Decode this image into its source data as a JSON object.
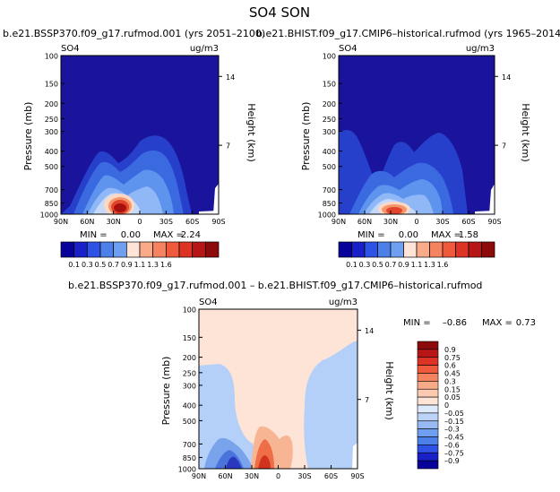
{
  "figure": {
    "title": "SO4 SON"
  },
  "colors": {
    "neg_bar": [
      "#08029a",
      "#1a20c8",
      "#2e52e6",
      "#4c7fe8",
      "#6f9ff0",
      "#97baf4",
      "#bcd3f8",
      "#ddeafc"
    ],
    "pos_bar": [
      "#fde4d6",
      "#fbcab0",
      "#f9aa88",
      "#f6835f",
      "#f05a3c",
      "#dd3324",
      "#b81616",
      "#8c0a0a"
    ],
    "panel_colors": [
      "#1a149c",
      "#2740cc",
      "#3b6ae0",
      "#5f94ee",
      "#90b8f6",
      "#c5dafa",
      "#fdd8c4",
      "#f5966a",
      "#e0442a",
      "#a80f0f"
    ],
    "diff_colors": [
      "#2a37bf",
      "#4a74dc",
      "#79a4ec",
      "#b4cff8",
      "#fde4d6",
      "#f8b594",
      "#ee6e48",
      "#d2331f"
    ]
  },
  "chart_data": [
    {
      "type": "contour",
      "panel": "top-left",
      "title": "b.e21.BSSP370.f09_g17.rufmod.001 (yrs 2051–2100)",
      "variable": "SO4",
      "units": "ug/m3",
      "ylabel": "Pressure (mb)",
      "ylabel_right": "Height (km)",
      "x_ticks": [
        "90N",
        "60N",
        "30N",
        "0",
        "30S",
        "60S",
        "90S"
      ],
      "y_ticks": [
        "100",
        "150",
        "200",
        "250",
        "300",
        "400",
        "500",
        "700",
        "850",
        "1000"
      ],
      "y_ticks_right": [
        "14",
        "7"
      ],
      "ylim": [
        1000,
        100
      ],
      "min_label": "MIN =",
      "min": "0.00",
      "max_label": "MAX =",
      "max": "2.24",
      "levels": [
        0.1,
        0.3,
        0.5,
        0.7,
        0.9,
        1.1,
        1.3,
        1.6
      ],
      "maximum_location": {
        "lat": "30N",
        "pressure_mb": 850
      }
    },
    {
      "type": "contour",
      "panel": "top-right",
      "title": "b.e21.BHIST.f09_g17.CMIP6–historical.rufmod (yrs 1965–2014)",
      "variable": "SO4",
      "units": "ug/m3",
      "ylabel": "Pressure (mb)",
      "ylabel_right": "Height (km)",
      "x_ticks": [
        "90N",
        "60N",
        "30N",
        "0",
        "30S",
        "60S",
        "90S"
      ],
      "y_ticks": [
        "100",
        "150",
        "200",
        "250",
        "300",
        "400",
        "500",
        "700",
        "850",
        "1000"
      ],
      "y_ticks_right": [
        "14",
        "7"
      ],
      "ylim": [
        1000,
        100
      ],
      "min_label": "MIN =",
      "min": "0.00",
      "max_label": "MAX =",
      "max": "1.58",
      "levels": [
        0.1,
        0.3,
        0.5,
        0.7,
        0.9,
        1.1,
        1.3,
        1.6
      ],
      "maximum_location": {
        "lat": "30N",
        "pressure_mb": 850
      }
    },
    {
      "type": "contour",
      "panel": "bottom",
      "title": "b.e21.BSSP370.f09_g17.rufmod.001 – b.e21.BHIST.f09_g17.CMIP6–historical.rufmod",
      "variable": "SO4",
      "units": "ug/m3",
      "ylabel": "Pressure (mb)",
      "ylabel_right": "Height (km)",
      "x_ticks": [
        "90N",
        "60N",
        "30N",
        "0",
        "30S",
        "60S",
        "90S"
      ],
      "y_ticks": [
        "100",
        "150",
        "200",
        "250",
        "300",
        "400",
        "500",
        "700",
        "850",
        "1000"
      ],
      "y_ticks_right": [
        "14",
        "7"
      ],
      "ylim": [
        1000,
        100
      ],
      "min_label": "MIN =",
      "min": "–0.86",
      "max_label": "MAX =",
      "max": "0.73",
      "levels": [
        -0.9,
        -0.75,
        -0.6,
        -0.45,
        -0.3,
        -0.15,
        -0.05,
        0,
        0.05,
        0.15,
        0.3,
        0.45,
        0.6,
        0.75,
        0.9
      ]
    }
  ],
  "colorbar_top": {
    "labels": [
      "0.1",
      "0.3",
      "0.5",
      "0.7",
      "0.9",
      "1.1",
      "1.3",
      "1.6"
    ]
  },
  "colorbar_diff": {
    "labels": [
      "0.9",
      "0.75",
      "0.6",
      "0.45",
      "0.3",
      "0.15",
      "0.05",
      "0",
      "–0.05",
      "–0.15",
      "–0.3",
      "–0.45",
      "–0.6",
      "–0.75",
      "–0.9"
    ]
  }
}
